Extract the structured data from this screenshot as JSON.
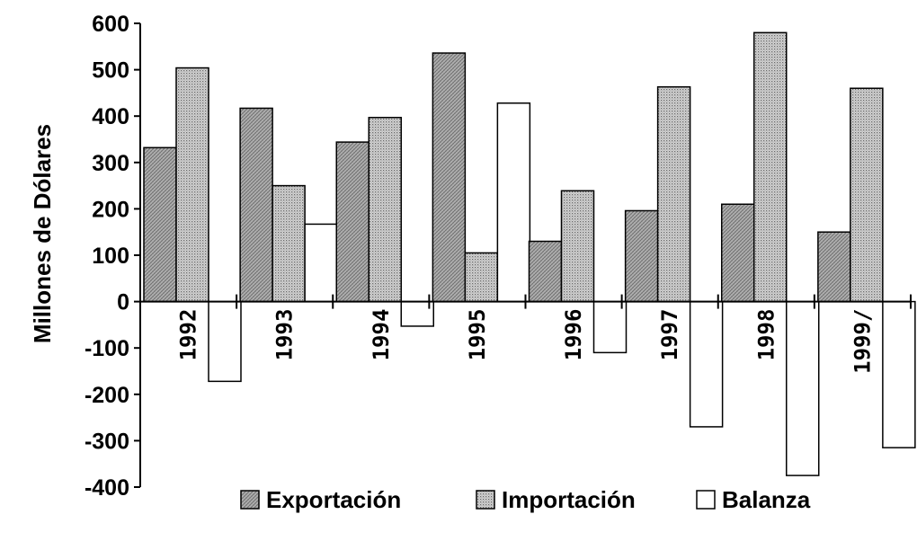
{
  "chart_data": {
    "type": "bar",
    "title": "",
    "xlabel": "",
    "ylabel": "Millones de Dólares",
    "ylim": [
      -400,
      600
    ],
    "yticks": [
      600,
      500,
      400,
      300,
      200,
      100,
      0,
      -100,
      -200,
      -300,
      -400
    ],
    "grid": false,
    "legend_position": "bottom",
    "categories": [
      "1992",
      "1993",
      "1994",
      "1995",
      "1996",
      "1997",
      "1998",
      "1999/"
    ],
    "series": [
      {
        "name": "Exportación",
        "color": "#a8a8a8",
        "pattern": "dense-hatch",
        "values": [
          332,
          417,
          344,
          536,
          130,
          196,
          210,
          150
        ]
      },
      {
        "name": "Importación",
        "color": "#c4c4c4",
        "pattern": "dots",
        "values": [
          504,
          250,
          397,
          105,
          239,
          463,
          580,
          460
        ]
      },
      {
        "name": "Balanza",
        "color": "#ffffff",
        "pattern": "none",
        "values": [
          -172,
          167,
          -53,
          428,
          -110,
          -270,
          -375,
          -315
        ]
      }
    ]
  }
}
